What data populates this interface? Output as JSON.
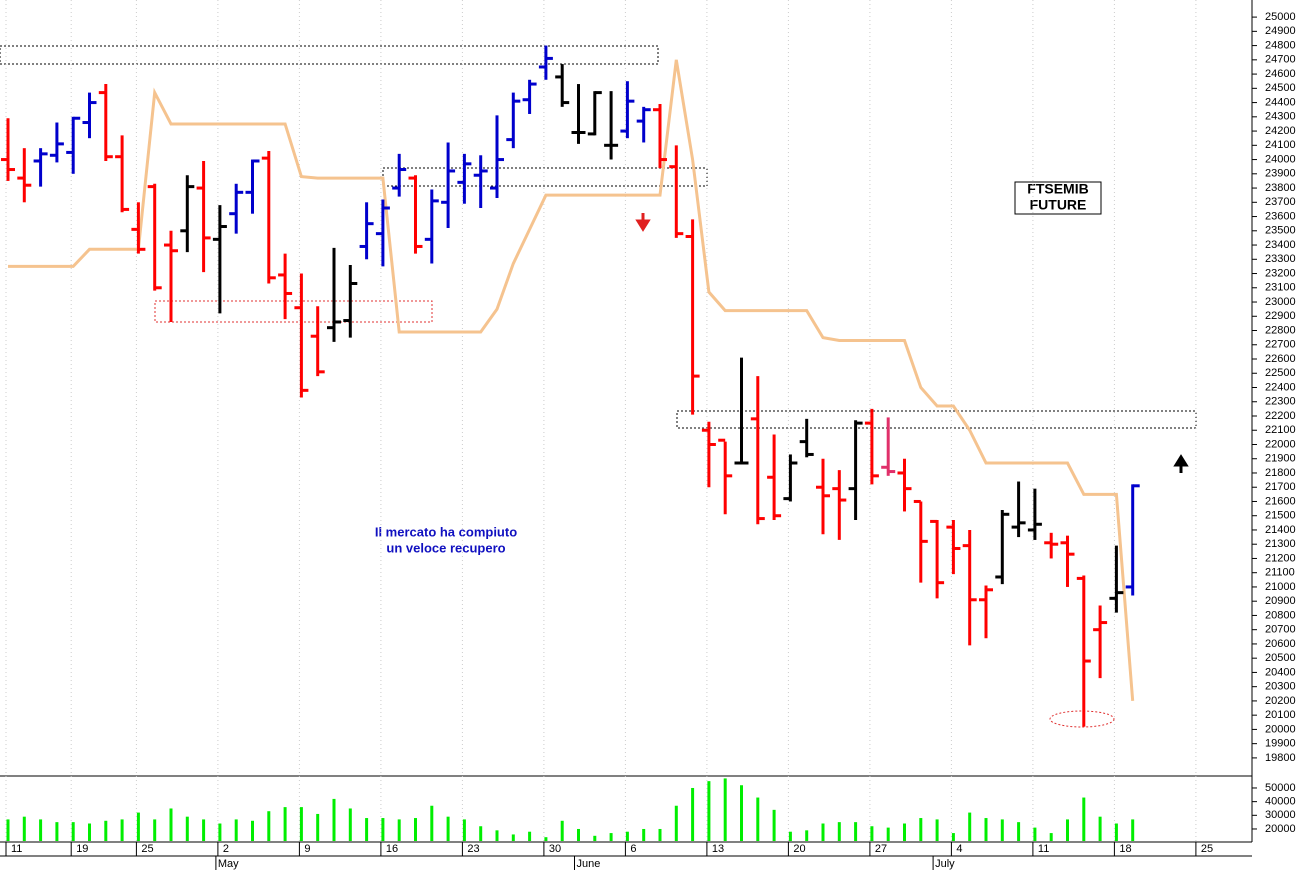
{
  "chart_data": {
    "type": "ohlc",
    "categories": [
      "11",
      null,
      null,
      null,
      "19",
      null,
      null,
      null,
      "25",
      null,
      null,
      null,
      null,
      "2",
      null,
      null,
      null,
      null,
      "9",
      null,
      null,
      null,
      null,
      "16",
      null,
      null,
      null,
      null,
      "23",
      null,
      null,
      null,
      null,
      "30",
      null,
      null,
      null,
      null,
      "6",
      null,
      null,
      null,
      null,
      "13",
      null,
      null,
      null,
      null,
      "20",
      null,
      null,
      null,
      null,
      "27",
      null,
      null,
      null,
      null,
      "4",
      null,
      null,
      null,
      null,
      "11",
      null,
      null,
      null,
      null,
      "18",
      null,
      null,
      null,
      null,
      "25",
      null,
      null,
      null
    ],
    "months": [
      {
        "value": 13,
        "label": "May"
      },
      {
        "value": 35,
        "label": "June"
      },
      {
        "value": 57,
        "label": "July"
      }
    ],
    "open": [
      24000,
      23870,
      23990,
      24030,
      24050,
      24260,
      24470,
      24020,
      23510,
      23810,
      23400,
      23500,
      23800,
      23440,
      23620,
      23770,
      24010,
      23190,
      22960,
      22760,
      22820,
      22870,
      23390,
      23480,
      23800,
      23870,
      23440,
      23700,
      23840,
      23890,
      23800,
      24140,
      24420,
      24650,
      24580,
      24190,
      24180,
      24100,
      24200,
      24270,
      24350,
      23950,
      23460,
      22100,
      22030,
      21870,
      22180,
      21770,
      21620,
      22020,
      21700,
      21690,
      21690,
      22150,
      21840,
      21800,
      21600,
      21460,
      21420,
      21290,
      20910,
      21070,
      21420,
      21400,
      21310,
      21310,
      21060,
      20700,
      20920,
      21000,
      null,
      null,
      null,
      null,
      null,
      null,
      null
    ],
    "high": [
      24290,
      24080,
      24080,
      24260,
      24300,
      24470,
      24530,
      24170,
      23700,
      23830,
      23500,
      23890,
      23990,
      23680,
      23830,
      24000,
      24060,
      23340,
      23200,
      22970,
      23380,
      23260,
      23700,
      23720,
      24040,
      23890,
      23790,
      24120,
      24040,
      24030,
      24310,
      24470,
      24560,
      24800,
      24670,
      24530,
      24480,
      24480,
      24550,
      24370,
      24390,
      24100,
      23580,
      22160,
      22020,
      22610,
      22480,
      22070,
      21930,
      22180,
      21900,
      21820,
      22170,
      22250,
      22190,
      21900,
      21600,
      21470,
      21470,
      21400,
      21010,
      21540,
      21740,
      21690,
      21380,
      21360,
      21080,
      20870,
      21290,
      21720,
      null,
      null,
      null,
      null,
      null,
      null,
      null
    ],
    "low": [
      23850,
      23700,
      23810,
      23980,
      23900,
      24150,
      23990,
      23630,
      23340,
      23080,
      22860,
      23350,
      23210,
      22920,
      23480,
      23620,
      23130,
      22880,
      22330,
      22480,
      22720,
      22750,
      23300,
      23250,
      23740,
      23340,
      23270,
      23520,
      23690,
      23660,
      23730,
      24080,
      24320,
      24560,
      24370,
      24110,
      24170,
      24000,
      24150,
      24120,
      23940,
      23450,
      22210,
      21700,
      21510,
      21860,
      21440,
      21470,
      21600,
      21910,
      21370,
      21330,
      21470,
      21720,
      21780,
      21530,
      21030,
      20920,
      21090,
      20590,
      20640,
      21020,
      21350,
      21330,
      21200,
      21000,
      20020,
      20360,
      20820,
      20940,
      null,
      null,
      null,
      null,
      null,
      null,
      null
    ],
    "close": [
      23930,
      23820,
      24040,
      24110,
      24290,
      24400,
      24020,
      23650,
      23370,
      23100,
      23360,
      23810,
      23450,
      23530,
      23770,
      23990,
      23170,
      23060,
      22380,
      22510,
      22860,
      23130,
      23550,
      23660,
      23930,
      23390,
      23710,
      23920,
      23970,
      23920,
      24000,
      24410,
      24530,
      24710,
      24400,
      24190,
      24470,
      24100,
      24410,
      24350,
      24000,
      23480,
      22480,
      22000,
      21780,
      21870,
      21480,
      21500,
      21870,
      21930,
      21640,
      21610,
      22150,
      21780,
      21810,
      21690,
      21320,
      21030,
      21270,
      20910,
      20980,
      21510,
      21450,
      21440,
      21300,
      21230,
      20480,
      20750,
      20960,
      21710,
      null,
      null,
      null,
      null,
      null,
      null,
      null
    ],
    "bar_colors": [
      "#ff0000",
      "#ff0000",
      "#0000cc",
      "#0000cc",
      "#0000cc",
      "#0000cc",
      "#ff0000",
      "#ff0000",
      "#ff0000",
      "#ff0000",
      "#ff0000",
      "#000000",
      "#ff0000",
      "#000000",
      "#0000cc",
      "#0000cc",
      "#ff0000",
      "#ff0000",
      "#ff0000",
      "#ff0000",
      "#000000",
      "#000000",
      "#0000cc",
      "#0000cc",
      "#0000cc",
      "#ff0000",
      "#0000cc",
      "#0000cc",
      "#0000cc",
      "#0000cc",
      "#0000cc",
      "#0000cc",
      "#0000cc",
      "#0000cc",
      "#000000",
      "#000000",
      "#000000",
      "#000000",
      "#0000cc",
      "#0000cc",
      "#ff0000",
      "#ff0000",
      "#ff0000",
      "#ff0000",
      "#ff0000",
      "#000000",
      "#ff0000",
      "#ff0000",
      "#000000",
      "#000000",
      "#ff0000",
      "#ff0000",
      "#000000",
      "#ff0000",
      "#e0306a",
      "#ff0000",
      "#ff0000",
      "#ff0000",
      "#ff0000",
      "#ff0000",
      "#ff0000",
      "#000000",
      "#000000",
      "#000000",
      "#ff0000",
      "#ff0000",
      "#ff0000",
      "#ff0000",
      "#000000",
      "#0000cc",
      null,
      null,
      null,
      null,
      null,
      null,
      null
    ],
    "line": {
      "color": "#f5c38f",
      "values": [
        23250,
        23250,
        23250,
        23250,
        23250,
        23370,
        23370,
        23370,
        23370,
        24470,
        24250,
        24250,
        24250,
        24250,
        24250,
        24250,
        24250,
        24250,
        23880,
        23870,
        23870,
        23870,
        23870,
        23870,
        22790,
        22790,
        22790,
        22790,
        22790,
        22790,
        22950,
        23270,
        23510,
        23750,
        23750,
        23750,
        23750,
        23750,
        23750,
        23750,
        23750,
        24700,
        24000,
        23070,
        22940,
        22940,
        22940,
        22940,
        22940,
        22940,
        22750,
        22730,
        22730,
        22730,
        22730,
        22730,
        22400,
        22270,
        22270,
        22100,
        21870,
        21870,
        21870,
        21870,
        21870,
        21870,
        21650,
        21650,
        21650,
        20200,
        null,
        null,
        null,
        null,
        null,
        null,
        null
      ]
    },
    "ylim": [
      19680,
      25120
    ],
    "yticks": [
      19800,
      19900,
      20000,
      20100,
      20200,
      20300,
      20400,
      20500,
      20600,
      20700,
      20800,
      20900,
      21000,
      21100,
      21200,
      21300,
      21400,
      21500,
      21600,
      21700,
      21800,
      21900,
      22000,
      22100,
      22200,
      22300,
      22400,
      22500,
      22600,
      22700,
      22800,
      22900,
      23000,
      23100,
      23200,
      23300,
      23400,
      23500,
      23600,
      23700,
      23800,
      23900,
      24000,
      24100,
      24200,
      24300,
      24400,
      24500,
      24600,
      24700,
      24800,
      24900,
      25000
    ],
    "volume": {
      "color": "#00ee00",
      "values": [
        27000,
        29000,
        27000,
        25000,
        25000,
        24000,
        26000,
        27000,
        32000,
        27000,
        35000,
        29000,
        27000,
        24000,
        27000,
        26000,
        33000,
        36000,
        36000,
        31000,
        42000,
        35000,
        28000,
        28000,
        27000,
        28000,
        37000,
        29000,
        27000,
        22000,
        19000,
        16000,
        18000,
        14000,
        26000,
        20000,
        15000,
        17000,
        18000,
        20000,
        20000,
        37000,
        50000,
        55000,
        57000,
        52000,
        43000,
        34000,
        18000,
        19000,
        24000,
        25000,
        25000,
        22000,
        21000,
        24000,
        28000,
        27000,
        17000,
        32000,
        28000,
        27000,
        25000,
        21000,
        17000,
        27000,
        43000,
        29000,
        24000,
        27000,
        null,
        null,
        null,
        null,
        null,
        null,
        null
      ],
      "ylim": [
        11200,
        57300
      ],
      "yticks": [
        20000,
        30000,
        40000,
        50000
      ]
    },
    "label_box": [
      "FTSEMIB",
      "FUTURE"
    ],
    "annotation": [
      "Il mercato ha compiuto",
      "un veloce recupero"
    ],
    "grid": true
  }
}
